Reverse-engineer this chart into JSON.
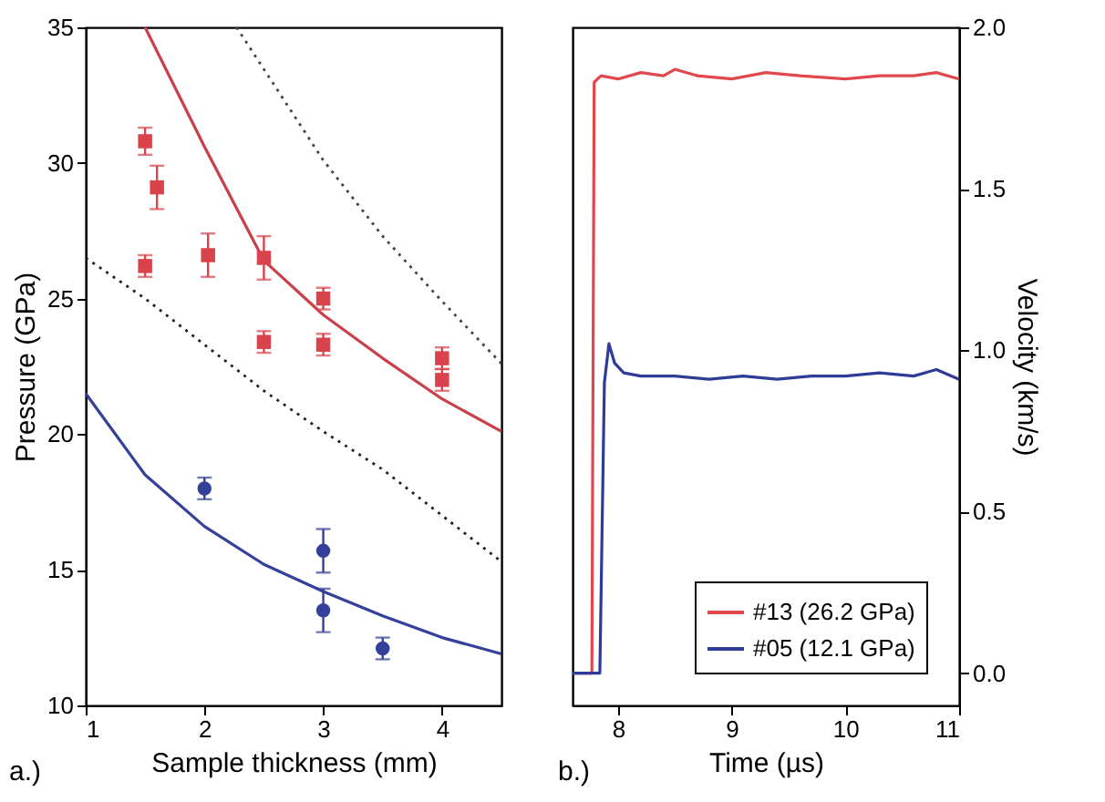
{
  "chart_data": [
    {
      "type": "scatter",
      "xlabel": "Sample thickness (mm)",
      "ylabel": "Pressure (GPa)",
      "xlim": [
        1,
        4.5
      ],
      "ylim": [
        10,
        35
      ],
      "xticks": [
        1,
        2,
        3,
        4
      ],
      "yticks": [
        10,
        15,
        20,
        25,
        30,
        35
      ],
      "grid": false,
      "legend": false,
      "annotations": [
        "a.)"
      ],
      "series": [
        {
          "type": "line",
          "color": "#c8404a",
          "line_style": "solid",
          "x": [
            1.5,
            2,
            2.5,
            3,
            3.5,
            4,
            4.5
          ],
          "values": [
            35,
            30.6,
            26.4,
            24.4,
            22.8,
            21.3,
            20.1
          ]
        },
        {
          "type": "line",
          "color": "#34409a",
          "line_style": "solid",
          "x": [
            1,
            1.5,
            2,
            2.5,
            3,
            3.5,
            4,
            4.5
          ],
          "values": [
            21.5,
            18.5,
            16.6,
            15.2,
            14.2,
            13.3,
            12.5,
            11.9
          ]
        },
        {
          "type": "line",
          "color": "#222222",
          "line_style": "dotted",
          "x": [
            1,
            1.5,
            2,
            2.5,
            3,
            3.5,
            4,
            4.5
          ],
          "values": [
            26.5,
            25,
            23.3,
            21.6,
            20.1,
            18.7,
            17,
            15.3
          ]
        },
        {
          "type": "line",
          "color": "#444444",
          "line_style": "dotted",
          "x": [
            2.27,
            3,
            3.5,
            4,
            4.5
          ],
          "values": [
            35,
            30.1,
            27.3,
            24.9,
            22.6
          ]
        },
        {
          "type": "scatter",
          "marker": "square",
          "color": "#d9434b",
          "x": [
            1.5,
            1.6,
            1.5,
            2.03,
            2.5,
            3,
            2.5,
            3,
            4,
            4
          ],
          "values": [
            30.8,
            29.1,
            26.2,
            26.6,
            26.5,
            25.0,
            23.4,
            23.3,
            22.8,
            22.0
          ],
          "errors": [
            0.5,
            0.8,
            0.4,
            0.8,
            0.8,
            0.4,
            0.4,
            0.4,
            0.4,
            0.4
          ]
        },
        {
          "type": "scatter",
          "marker": "circle",
          "color": "#34409a",
          "x": [
            2,
            3,
            3,
            3.5
          ],
          "values": [
            18.0,
            15.7,
            13.5,
            12.1
          ],
          "errors": [
            0.4,
            0.8,
            0.8,
            0.4
          ]
        }
      ]
    },
    {
      "type": "line",
      "xlabel": "Time (µs)",
      "ylabel": "Velocity (km/s)",
      "xlim": [
        7.6,
        11
      ],
      "ylim": [
        -0.1,
        2.0
      ],
      "xticks": [
        8,
        9,
        10,
        11
      ],
      "yticks": [
        {
          "value": 0,
          "label": "0.0"
        },
        {
          "value": 0.5,
          "label": "0.5"
        },
        {
          "value": 1,
          "label": "1.0"
        },
        {
          "value": 1.5,
          "label": "1.5"
        },
        {
          "value": 2,
          "label": "2.0"
        }
      ],
      "grid": false,
      "legend": "bottom right",
      "line_style": "solid",
      "annotations": [
        "b.)"
      ],
      "series": [
        {
          "name": "#13 (26.2 GPa)",
          "color": "#e0484e",
          "x": [
            7.6,
            7.77,
            7.79,
            7.85,
            8.0,
            8.2,
            8.4,
            8.5,
            8.7,
            9.0,
            9.3,
            9.6,
            10.0,
            10.3,
            10.6,
            10.8,
            11.0
          ],
          "values": [
            0,
            0,
            1.83,
            1.85,
            1.84,
            1.86,
            1.85,
            1.87,
            1.85,
            1.84,
            1.86,
            1.85,
            1.84,
            1.85,
            1.85,
            1.86,
            1.84
          ]
        },
        {
          "name": "#05 (12.1 GPa)",
          "color": "#2e3c98",
          "x": [
            7.6,
            7.84,
            7.88,
            7.92,
            7.97,
            8.05,
            8.2,
            8.5,
            8.8,
            9.1,
            9.4,
            9.7,
            10.0,
            10.3,
            10.6,
            10.8,
            11.0
          ],
          "values": [
            0,
            0,
            0.9,
            1.02,
            0.96,
            0.93,
            0.92,
            0.92,
            0.91,
            0.92,
            0.91,
            0.92,
            0.92,
            0.93,
            0.92,
            0.94,
            0.91
          ]
        }
      ]
    }
  ]
}
